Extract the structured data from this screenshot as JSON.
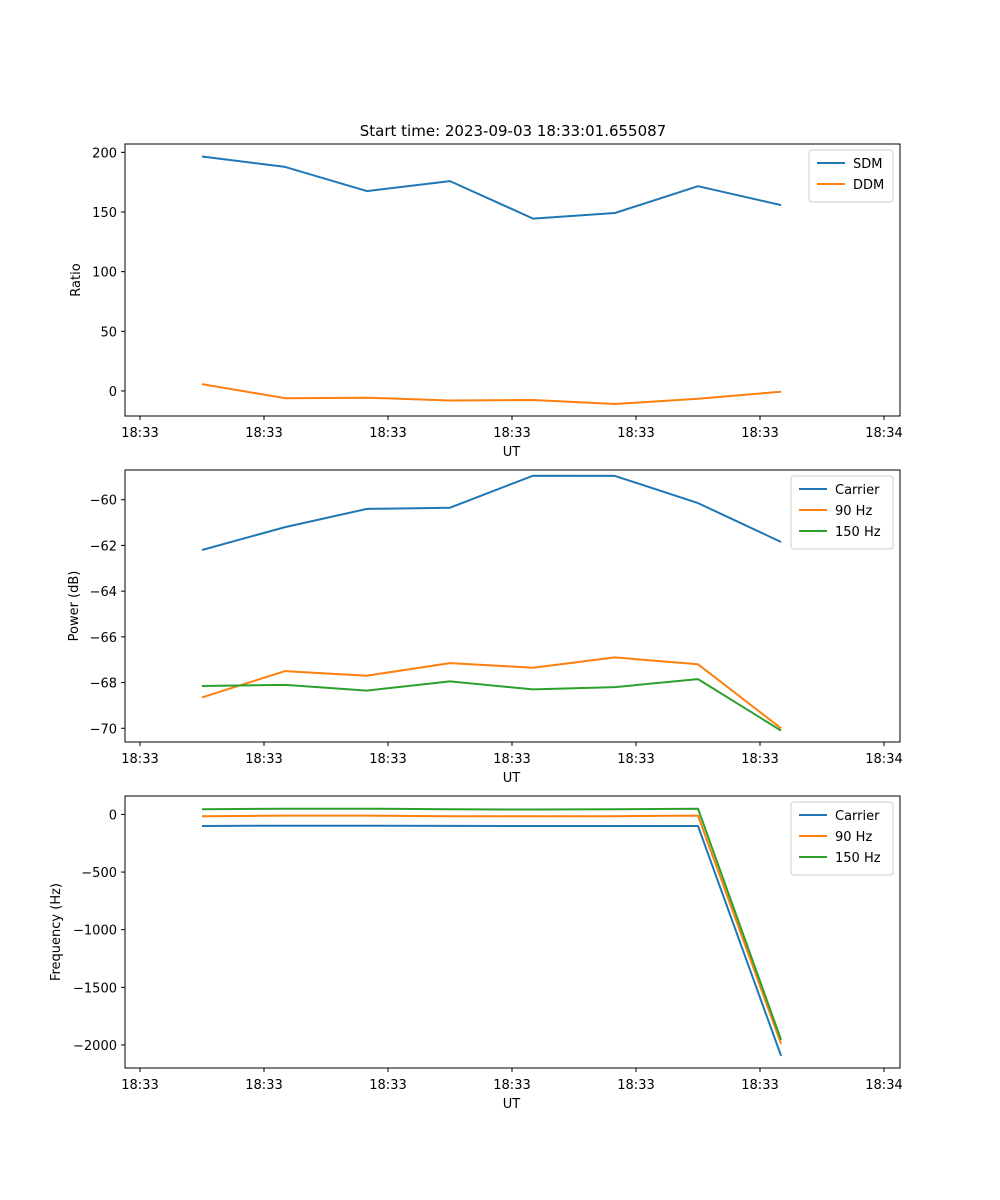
{
  "figure_title": "Start time: 2023-09-03 18:33:01.655087",
  "colors": {
    "blue": "#1f77b4",
    "orange": "#ff7f0e",
    "green": "#2ca02c"
  },
  "chart_data": [
    {
      "type": "line",
      "title": "Start time: 2023-09-03 18:33:01.655087",
      "xlabel": "UT",
      "ylabel": "Ratio",
      "x_ticks": [
        "18:33",
        "18:33",
        "18:33",
        "18:33",
        "18:33",
        "18:33",
        "18:34"
      ],
      "xlim": [
        0,
        6
      ],
      "ylim": [
        -21,
        207
      ],
      "y_ticks": [
        0,
        50,
        100,
        150,
        200
      ],
      "legend_position": "top-right",
      "x": [
        0.5,
        1.17,
        1.83,
        2.5,
        3.17,
        3.83,
        4.5,
        5.17
      ],
      "series": [
        {
          "name": "SDM",
          "color": "#1f77b4",
          "values": [
            196.5,
            187.8,
            167.5,
            175.9,
            144.5,
            149.2,
            171.6,
            155.8
          ]
        },
        {
          "name": "DDM",
          "color": "#ff7f0e",
          "values": [
            5.7,
            -6.1,
            -5.7,
            -8.0,
            -7.6,
            -10.9,
            -6.5,
            -0.6
          ]
        }
      ]
    },
    {
      "type": "line",
      "title": "",
      "xlabel": "UT",
      "ylabel": "Power (dB)",
      "x_ticks": [
        "18:33",
        "18:33",
        "18:33",
        "18:33",
        "18:33",
        "18:33",
        "18:34"
      ],
      "xlim": [
        0,
        6
      ],
      "ylim": [
        -70.6,
        -58.7
      ],
      "y_ticks": [
        -70,
        -68,
        -66,
        -64,
        -62,
        -60
      ],
      "legend_position": "top-right",
      "x": [
        0.5,
        1.17,
        1.83,
        2.5,
        3.17,
        3.83,
        4.5,
        5.17
      ],
      "series": [
        {
          "name": "Carrier",
          "color": "#1f77b4",
          "values": [
            -62.2,
            -61.2,
            -60.4,
            -60.35,
            -58.95,
            -58.96,
            -60.15,
            -61.85
          ]
        },
        {
          "name": "90 Hz",
          "color": "#ff7f0e",
          "values": [
            -68.65,
            -67.5,
            -67.7,
            -67.15,
            -67.35,
            -66.9,
            -67.2,
            -70.0
          ]
        },
        {
          "name": "150 Hz",
          "color": "#2ca02c",
          "values": [
            -68.15,
            -68.1,
            -68.35,
            -67.95,
            -68.3,
            -68.2,
            -67.85,
            -70.1
          ]
        }
      ]
    },
    {
      "type": "line",
      "title": "",
      "xlabel": "UT",
      "ylabel": "Frequency (Hz)",
      "x_ticks": [
        "18:33",
        "18:33",
        "18:33",
        "18:33",
        "18:33",
        "18:33",
        "18:34"
      ],
      "xlim": [
        0,
        6
      ],
      "ylim": [
        -2200,
        160
      ],
      "y_ticks": [
        -2000,
        -1500,
        -1000,
        -500,
        0
      ],
      "legend_position": "top-right",
      "x": [
        0.5,
        1.17,
        1.83,
        2.5,
        3.17,
        3.83,
        4.5,
        5.17
      ],
      "series": [
        {
          "name": "Carrier",
          "color": "#1f77b4",
          "values": [
            -100,
            -98,
            -98,
            -99,
            -100,
            -100,
            -100,
            -2095
          ]
        },
        {
          "name": "90 Hz",
          "color": "#ff7f0e",
          "values": [
            -15,
            -10,
            -10,
            -15,
            -15,
            -15,
            -10,
            -1990
          ]
        },
        {
          "name": "150 Hz",
          "color": "#2ca02c",
          "values": [
            45,
            50,
            50,
            45,
            43,
            45,
            50,
            -1955
          ]
        }
      ]
    }
  ]
}
